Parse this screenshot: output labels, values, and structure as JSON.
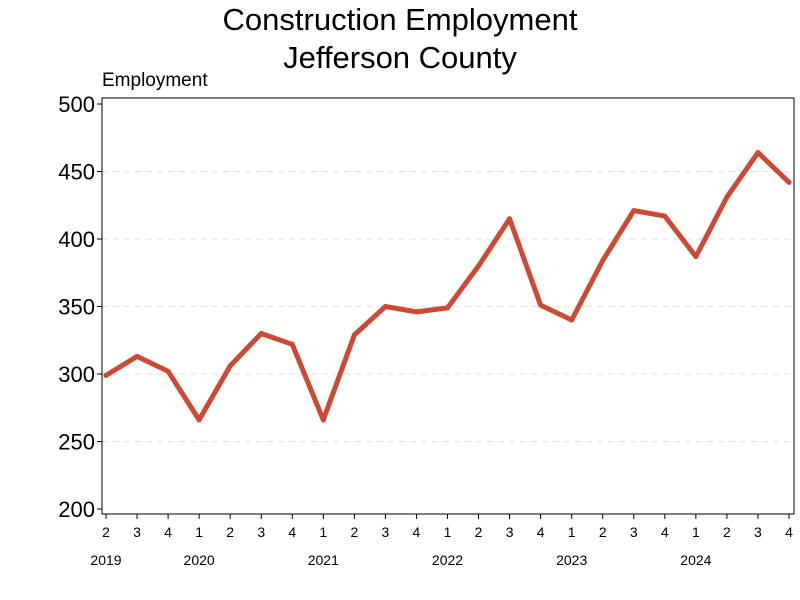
{
  "chart_data": {
    "type": "line",
    "title_line1": "Construction Employment",
    "title_line2": "Jefferson County",
    "ylabel": "Employment",
    "ylim": [
      200,
      500
    ],
    "yticks": [
      200,
      250,
      300,
      350,
      400,
      450,
      500
    ],
    "grid": "horizontal-dashed",
    "line_color": "#cc4a33",
    "quarters": [
      "2",
      "3",
      "4",
      "1",
      "2",
      "3",
      "4",
      "1",
      "2",
      "3",
      "4",
      "1",
      "2",
      "3",
      "4",
      "1",
      "2",
      "3",
      "4",
      "1",
      "2",
      "3",
      "4"
    ],
    "years": [
      {
        "label": "2019",
        "index": 0
      },
      {
        "label": "2020",
        "index": 3
      },
      {
        "label": "2021",
        "index": 7
      },
      {
        "label": "2022",
        "index": 11
      },
      {
        "label": "2023",
        "index": 15
      },
      {
        "label": "2024",
        "index": 19
      }
    ],
    "series": [
      {
        "values": [
          299,
          313,
          302,
          266,
          306,
          330,
          322,
          266,
          329,
          350,
          346,
          349,
          380,
          415,
          351,
          340,
          384,
          421,
          417,
          387,
          431,
          464,
          442
        ]
      }
    ]
  }
}
